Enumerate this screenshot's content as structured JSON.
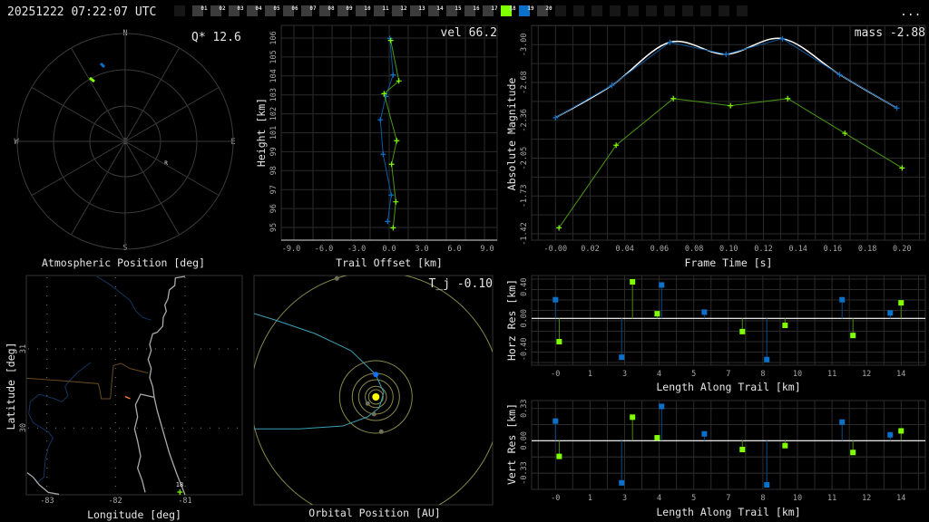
{
  "header": {
    "timestamp": "20251222 07:22:07 UTC",
    "menu_label": "...",
    "frames": [
      {
        "label": "",
        "state": "empty"
      },
      {
        "label": "01",
        "state": "normal"
      },
      {
        "label": "02",
        "state": "normal"
      },
      {
        "label": "03",
        "state": "normal"
      },
      {
        "label": "04",
        "state": "normal"
      },
      {
        "label": "05",
        "state": "normal"
      },
      {
        "label": "06",
        "state": "normal"
      },
      {
        "label": "07",
        "state": "normal"
      },
      {
        "label": "08",
        "state": "normal"
      },
      {
        "label": "09",
        "state": "normal"
      },
      {
        "label": "10",
        "state": "normal"
      },
      {
        "label": "11",
        "state": "normal"
      },
      {
        "label": "12",
        "state": "normal"
      },
      {
        "label": "13",
        "state": "normal"
      },
      {
        "label": "14",
        "state": "normal"
      },
      {
        "label": "15",
        "state": "normal"
      },
      {
        "label": "16",
        "state": "normal"
      },
      {
        "label": "17",
        "state": "normal"
      },
      {
        "label": "18",
        "state": "green"
      },
      {
        "label": "19",
        "state": "blue"
      },
      {
        "label": "20",
        "state": "normal"
      },
      {
        "label": "",
        "state": "empty"
      },
      {
        "label": "",
        "state": "empty"
      },
      {
        "label": "",
        "state": "empty"
      },
      {
        "label": "",
        "state": "empty"
      },
      {
        "label": "",
        "state": "empty"
      },
      {
        "label": "",
        "state": "empty"
      },
      {
        "label": "",
        "state": "empty"
      },
      {
        "label": "",
        "state": "empty"
      },
      {
        "label": "",
        "state": "empty"
      },
      {
        "label": "",
        "state": "empty"
      },
      {
        "label": "",
        "state": "empty"
      }
    ]
  },
  "colors": {
    "green": "#80ff00",
    "blue": "#0a70c8",
    "grid": "#2b2b2b",
    "text": "#e6e6e6",
    "sun": "#ffff00",
    "orbit": "#8a8a4a",
    "comet": "#3aa0b4"
  },
  "polar": {
    "title": "Atmospheric Position [deg]",
    "metric": "Q* 12.6",
    "labels": {
      "n": "N",
      "s": "S",
      "e": "E",
      "w": "W",
      "z": "Z"
    },
    "station_marker": "R"
  },
  "map": {
    "xlabel": "Longitude [deg]",
    "ylabel": "Latitude [deg]",
    "xticks": [
      "-83",
      "-82",
      "-81"
    ],
    "yticks": [
      "31",
      "30"
    ],
    "frame_marker": "18"
  },
  "orbit": {
    "title": "Orbital Position [AU]",
    "metric": "T_j -0.10"
  },
  "chart_data": [
    {
      "id": "trail",
      "type": "line",
      "metric": "vel 66.2",
      "xlabel": "Trail Offset [km]",
      "ylabel": "Height [km]",
      "xticks": [
        "-9.0",
        "-6.0",
        "-3.0",
        "0.0",
        "3.0",
        "6.0",
        "9.0"
      ],
      "yticks": [
        "106",
        "105",
        "104",
        "103",
        "102",
        "101",
        "99",
        "98",
        "97",
        "96",
        "95"
      ],
      "xlim": [
        -9,
        9
      ],
      "ylim": [
        95,
        106
      ],
      "series": [
        {
          "color": "blue",
          "x": [
            0.06,
            0.36,
            -0.31,
            -0.81,
            -0.56,
            0.19,
            -0.14
          ],
          "y": [
            105.98,
            103.86,
            102.62,
            101.25,
            99.25,
            96.88,
            95.35
          ]
        },
        {
          "color": "green",
          "x": [
            0.14,
            0.89,
            -0.47,
            0.69,
            0.22,
            0.61,
            0.36
          ],
          "y": [
            105.86,
            103.51,
            102.77,
            100.04,
            98.67,
            96.49,
            94.98
          ]
        }
      ]
    },
    {
      "id": "magnitude",
      "type": "line",
      "metric": "mass -2.88",
      "xlabel": "Frame Time [s]",
      "ylabel": "Absolute Magnitude",
      "xticks": [
        "-0.00",
        "0.02",
        "0.04",
        "0.06",
        "0.08",
        "0.10",
        "0.12",
        "0.14",
        "0.16",
        "0.18",
        "0.20"
      ],
      "yticks": [
        "-3.00",
        "-2.68",
        "-2.36",
        "-2.05",
        "-1.73",
        "-1.42"
      ],
      "xlim": [
        0,
        0.2
      ],
      "ylim": [
        -3.0,
        -1.42
      ],
      "y_inverted": true,
      "series": [
        {
          "color": "blue",
          "smooth_fit": true,
          "x": [
            0.0,
            0.0325,
            0.066,
            0.0984,
            0.131,
            0.164,
            0.197
          ],
          "y": [
            -2.39,
            -2.66,
            -3.02,
            -2.92,
            -3.05,
            -2.75,
            -2.47
          ]
        },
        {
          "color": "green",
          "x": [
            0.002,
            0.035,
            0.068,
            0.101,
            0.134,
            0.167,
            0.2
          ],
          "y": [
            -1.47,
            -2.16,
            -2.55,
            -2.49,
            -2.55,
            -2.26,
            -1.97
          ]
        }
      ]
    },
    {
      "id": "horz-res",
      "type": "scatter",
      "xlabel": "Length Along Trail [km]",
      "ylabel": "Horz Res [km]",
      "xticks": [
        "-0",
        "1",
        "3",
        "4",
        "5",
        "7",
        "8",
        "10",
        "11",
        "12",
        "14"
      ],
      "yticks": [
        "0.40",
        "0.00",
        "-0.40"
      ],
      "xlim": [
        0,
        14
      ],
      "ylim": [
        -0.55,
        0.5
      ],
      "series": [
        {
          "color": "blue",
          "x": [
            0,
            2.68,
            4.3,
            6.03,
            8.56,
            11.61,
            13.56
          ],
          "y": [
            0.24,
            -0.5,
            0.43,
            0.08,
            -0.53,
            0.24,
            0.07
          ]
        },
        {
          "color": "green",
          "x": [
            0.15,
            3.12,
            4.12,
            7.57,
            9.3,
            12.05,
            14.0
          ],
          "y": [
            -0.3,
            0.47,
            0.06,
            -0.17,
            -0.09,
            -0.22,
            0.2
          ]
        }
      ]
    },
    {
      "id": "vert-res",
      "type": "scatter",
      "xlabel": "Length Along Trail [km]",
      "ylabel": "Vert Res [km]",
      "xticks": [
        "-0",
        "1",
        "3",
        "4",
        "5",
        "7",
        "8",
        "10",
        "11",
        "12",
        "14"
      ],
      "yticks": [
        "0.33",
        "0.00",
        "-0.33"
      ],
      "xlim": [
        0,
        14
      ],
      "ylim": [
        -0.45,
        0.36
      ],
      "series": [
        {
          "color": "blue",
          "x": [
            0,
            2.68,
            4.3,
            6.03,
            8.56,
            11.61,
            13.56
          ],
          "y": [
            0.2,
            -0.43,
            0.35,
            0.07,
            -0.45,
            0.19,
            0.06
          ]
        },
        {
          "color": "green",
          "x": [
            0.15,
            3.12,
            4.12,
            7.57,
            9.3,
            12.05,
            14.0
          ],
          "y": [
            -0.16,
            0.24,
            0.03,
            -0.09,
            -0.05,
            -0.12,
            0.1
          ]
        }
      ]
    }
  ]
}
